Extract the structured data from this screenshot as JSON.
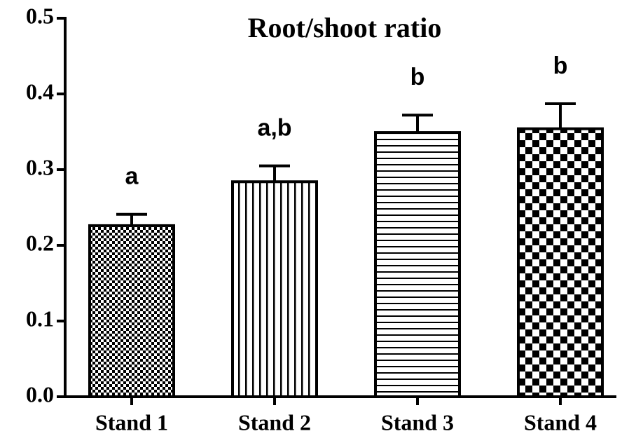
{
  "chart_data": {
    "type": "bar",
    "title": "Root/shoot ratio",
    "categories": [
      "Stand 1",
      "Stand 2",
      "Stand 3",
      "Stand 4"
    ],
    "values": [
      0.226,
      0.284,
      0.349,
      0.354
    ],
    "errors": [
      0.015,
      0.021,
      0.023,
      0.033
    ],
    "annotations": [
      "a",
      "a,b",
      "b",
      "b"
    ],
    "fill_patterns": [
      "checker-small",
      "vertical-lines",
      "horizontal-lines",
      "checker-large"
    ],
    "color": "#000000",
    "ylim": [
      0,
      0.5
    ],
    "yticks": [
      {
        "value": 0,
        "label": "0.0"
      },
      0.1,
      0.2,
      0.3,
      0.4,
      0.5
    ],
    "grid": false
  }
}
